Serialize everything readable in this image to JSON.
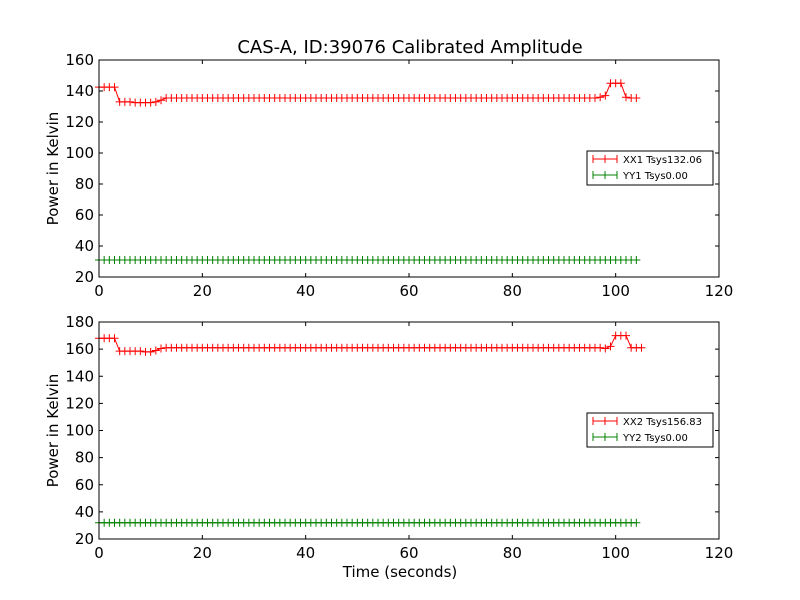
{
  "figure": {
    "title": "CAS-A, ID:39076 Calibrated Amplitude"
  },
  "chart_data": [
    {
      "type": "line",
      "title": "CAS-A, ID:39076 Calibrated Amplitude",
      "xlabel": "",
      "ylabel": "Power in Kelvin",
      "xlim": [
        0,
        120
      ],
      "ylim": [
        20,
        160
      ],
      "xticks": [
        0,
        20,
        40,
        60,
        80,
        100,
        120
      ],
      "yticks": [
        20,
        40,
        60,
        80,
        100,
        120,
        140,
        160
      ],
      "grid": false,
      "marker": "+",
      "legend_position": "center-right",
      "series": [
        {
          "name": "XX1 Tsys132.06",
          "color": "#ff0000",
          "x_start": 0,
          "x_step": 1,
          "values": [
            142.5,
            142.5,
            142.5,
            142.5,
            133,
            133,
            133,
            132.5,
            132.5,
            132.5,
            132.5,
            133,
            134,
            135.5,
            135.5,
            135.5,
            135.5,
            135.5,
            135.5,
            135.5,
            135.5,
            135.5,
            135.5,
            135.5,
            135.5,
            135.5,
            135.5,
            135.5,
            135.5,
            135.5,
            135.5,
            135.5,
            135.5,
            135.5,
            135.5,
            135.5,
            135.5,
            135.5,
            135.5,
            135.5,
            135.5,
            135.5,
            135.5,
            135.5,
            135.5,
            135.5,
            135.5,
            135.5,
            135.5,
            135.5,
            135.5,
            135.5,
            135.5,
            135.5,
            135.5,
            135.5,
            135.5,
            135.5,
            135.5,
            135.5,
            135.5,
            135.5,
            135.5,
            135.5,
            135.5,
            135.5,
            135.5,
            135.5,
            135.5,
            135.5,
            135.5,
            135.5,
            135.5,
            135.5,
            135.5,
            135.5,
            135.5,
            135.5,
            135.5,
            135.5,
            135.5,
            135.5,
            135.5,
            135.5,
            135.5,
            135.5,
            135.5,
            135.5,
            135.5,
            135.5,
            135.5,
            135.5,
            135.5,
            135.5,
            135.5,
            135.5,
            135.5,
            136,
            137,
            145,
            145,
            145,
            136,
            135.5,
            135.5
          ]
        },
        {
          "name": "YY1 Tsys0.00",
          "color": "#008000",
          "x_start": 0,
          "x_step": 1,
          "values": [
            31,
            31,
            31,
            31,
            31,
            31,
            31,
            31,
            31,
            31,
            31,
            31,
            31,
            31,
            31,
            31,
            31,
            31,
            31,
            31,
            31,
            31,
            31,
            31,
            31,
            31,
            31,
            31,
            31,
            31,
            31,
            31,
            31,
            31,
            31,
            31,
            31,
            31,
            31,
            31,
            31,
            31,
            31,
            31,
            31,
            31,
            31,
            31,
            31,
            31,
            31,
            31,
            31,
            31,
            31,
            31,
            31,
            31,
            31,
            31,
            31,
            31,
            31,
            31,
            31,
            31,
            31,
            31,
            31,
            31,
            31,
            31,
            31,
            31,
            31,
            31,
            31,
            31,
            31,
            31,
            31,
            31,
            31,
            31,
            31,
            31,
            31,
            31,
            31,
            31,
            31,
            31,
            31,
            31,
            31,
            31,
            31,
            31,
            31,
            31,
            31,
            31,
            31,
            31,
            31
          ]
        }
      ]
    },
    {
      "type": "line",
      "title": "",
      "xlabel": "Time (seconds)",
      "ylabel": "Power in Kelvin",
      "xlim": [
        0,
        120
      ],
      "ylim": [
        20,
        180
      ],
      "xticks": [
        0,
        20,
        40,
        60,
        80,
        100,
        120
      ],
      "yticks": [
        20,
        40,
        60,
        80,
        100,
        120,
        140,
        160,
        180
      ],
      "grid": false,
      "marker": "+",
      "legend_position": "center-right",
      "series": [
        {
          "name": "XX2 Tsys156.83",
          "color": "#ff0000",
          "x_start": 0,
          "x_step": 1,
          "values": [
            168,
            168,
            168,
            168,
            158.5,
            158.5,
            158.5,
            158.5,
            158.5,
            158,
            158,
            159,
            160.5,
            161,
            161,
            161,
            161,
            161,
            161,
            161,
            161,
            161,
            161,
            161,
            161,
            161,
            161,
            161,
            161,
            161,
            161,
            161,
            161,
            161,
            161,
            161,
            161,
            161,
            161,
            161,
            161,
            161,
            161,
            161,
            161,
            161,
            161,
            161,
            161,
            161,
            161,
            161,
            161,
            161,
            161,
            161,
            161,
            161,
            161,
            161,
            161,
            161,
            161,
            161,
            161,
            161,
            161,
            161,
            161,
            161,
            161,
            161,
            161,
            161,
            161,
            161,
            161,
            161,
            161,
            161,
            161,
            161,
            161,
            161,
            161,
            161,
            161,
            161,
            161,
            161,
            161,
            161,
            161,
            161,
            161,
            161,
            161,
            161,
            160.5,
            162,
            170,
            170,
            170,
            161,
            161,
            161
          ]
        },
        {
          "name": "YY2 Tsys0.00",
          "color": "#008000",
          "x_start": 0,
          "x_step": 1,
          "values": [
            32,
            32,
            32,
            32,
            32,
            32,
            32,
            32,
            32,
            32,
            32,
            32,
            32,
            32,
            32,
            32,
            32,
            32,
            32,
            32,
            32,
            32,
            32,
            32,
            32,
            32,
            32,
            32,
            32,
            32,
            32,
            32,
            32,
            32,
            32,
            32,
            32,
            32,
            32,
            32,
            32,
            32,
            32,
            32,
            32,
            32,
            32,
            32,
            32,
            32,
            32,
            32,
            32,
            32,
            32,
            32,
            32,
            32,
            32,
            32,
            32,
            32,
            32,
            32,
            32,
            32,
            32,
            32,
            32,
            32,
            32,
            32,
            32,
            32,
            32,
            32,
            32,
            32,
            32,
            32,
            32,
            32,
            32,
            32,
            32,
            32,
            32,
            32,
            32,
            32,
            32,
            32,
            32,
            32,
            32,
            32,
            32,
            32,
            32,
            32,
            32,
            32,
            32,
            32,
            32
          ]
        }
      ]
    }
  ]
}
